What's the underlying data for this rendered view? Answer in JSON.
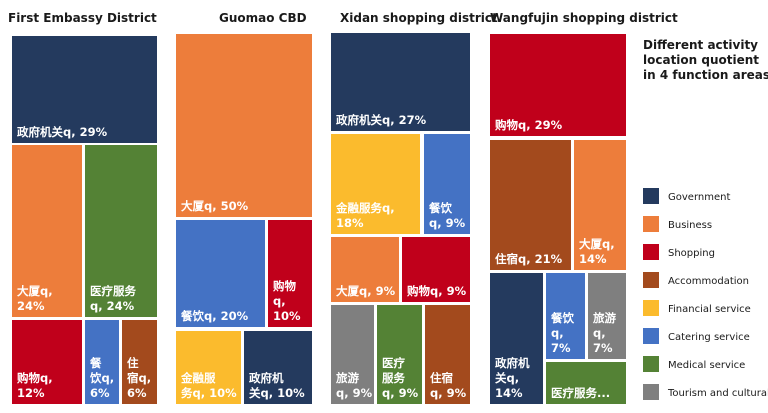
{
  "chart_data": {
    "type": "treemap",
    "title": "Different activity location quotient in 4 function areas",
    "colors": {
      "Government": "#243a5e",
      "Business": "#ed7d3b",
      "Shopping": "#c0001b",
      "Accommodation": "#a34a1d",
      "Financial service": "#fbbb2d",
      "Catering service": "#4472c4",
      "Medical service": "#548235",
      "Tourism and cultural": "#7f7f7f"
    },
    "legend": [
      "Government",
      "Business",
      "Shopping",
      "Accommodation",
      "Financial service",
      "Catering service",
      "Medical service",
      "Tourism and cultural"
    ],
    "panels": [
      {
        "name": "First Embassy District",
        "cells": [
          {
            "category": "Government",
            "value": 29,
            "label_lines": [
              "政府机关q, 29%"
            ]
          },
          {
            "category": "Business",
            "value": 24,
            "label_lines": [
              "大厦q,",
              "24%"
            ]
          },
          {
            "category": "Medical service",
            "value": 24,
            "label_lines": [
              "医疗服务",
              "q, 24%"
            ]
          },
          {
            "category": "Shopping",
            "value": 12,
            "label_lines": [
              "购物q,",
              "12%"
            ]
          },
          {
            "category": "Catering service",
            "value": 6,
            "label_lines": [
              "餐",
              "饮q,",
              "6%"
            ]
          },
          {
            "category": "Accommodation",
            "value": 6,
            "label_lines": [
              "住",
              "宿q,",
              "6%"
            ]
          }
        ]
      },
      {
        "name": "Guomao CBD",
        "cells": [
          {
            "category": "Business",
            "value": 50,
            "label_lines": [
              "大厦q, 50%"
            ]
          },
          {
            "category": "Catering service",
            "value": 20,
            "label_lines": [
              "餐饮q, 20%"
            ]
          },
          {
            "category": "Shopping",
            "value": 10,
            "label_lines": [
              "购物",
              "q,",
              "10%"
            ]
          },
          {
            "category": "Financial service",
            "value": 10,
            "label_lines": [
              "金融服",
              "务q, 10%"
            ]
          },
          {
            "category": "Government",
            "value": 10,
            "label_lines": [
              "政府机",
              "关q, 10%"
            ]
          }
        ]
      },
      {
        "name": "Xidan shopping district",
        "cells": [
          {
            "category": "Government",
            "value": 27,
            "label_lines": [
              "政府机关q, 27%"
            ]
          },
          {
            "category": "Financial service",
            "value": 18,
            "label_lines": [
              "金融服务q,",
              "18%"
            ]
          },
          {
            "category": "Catering service",
            "value": 9,
            "label_lines": [
              "餐饮",
              "q, 9%"
            ]
          },
          {
            "category": "Business",
            "value": 9,
            "label_lines": [
              "大厦q, 9%"
            ]
          },
          {
            "category": "Shopping",
            "value": 9,
            "label_lines": [
              "购物q, 9%"
            ]
          },
          {
            "category": "Tourism and cultural",
            "value": 9,
            "label_lines": [
              "旅游",
              "q, 9%"
            ]
          },
          {
            "category": "Medical service",
            "value": 9,
            "label_lines": [
              "医疗",
              "服务",
              "q, 9%"
            ]
          },
          {
            "category": "Accommodation",
            "value": 9,
            "label_lines": [
              "住宿",
              "q, 9%"
            ]
          }
        ]
      },
      {
        "name": "Wangfujin shopping district",
        "cells": [
          {
            "category": "Shopping",
            "value": 29,
            "label_lines": [
              "购物q, 29%"
            ]
          },
          {
            "category": "Accommodation",
            "value": 21,
            "label_lines": [
              "住宿q, 21%"
            ]
          },
          {
            "category": "Business",
            "value": 14,
            "label_lines": [
              "大厦q,",
              "14%"
            ]
          },
          {
            "category": "Government",
            "value": 14,
            "label_lines": [
              "政府机",
              "关q,",
              "14%"
            ]
          },
          {
            "category": "Catering service",
            "value": 7,
            "label_lines": [
              "餐饮",
              "q,",
              "7%"
            ]
          },
          {
            "category": "Tourism and cultural",
            "value": 7,
            "label_lines": [
              "旅游",
              "q,",
              "7%"
            ]
          },
          {
            "category": "Medical service",
            "value": 7,
            "label_lines": [
              "医疗服务..."
            ]
          }
        ]
      }
    ]
  }
}
